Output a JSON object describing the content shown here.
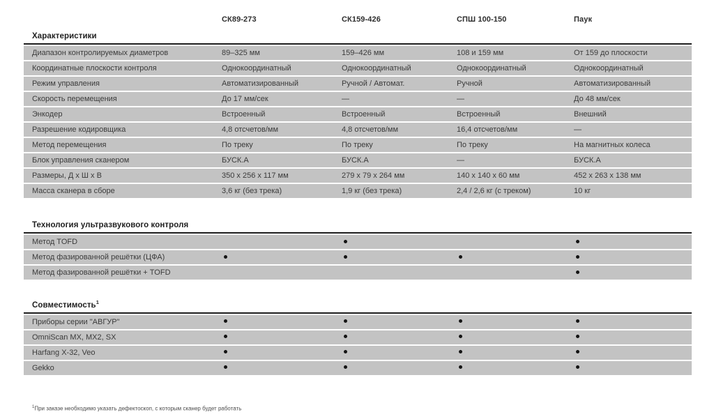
{
  "columns": [
    "СК89-273",
    "СК159-426",
    "СПШ 100-150",
    "Паук"
  ],
  "sections": [
    {
      "title": "Характеристики",
      "superscript": "",
      "rows": [
        {
          "label": "Диапазон контролируемых диаметров",
          "values": [
            "89–325 мм",
            "159–426 мм",
            "108 и 159 мм",
            "От 159 до плоскости"
          ]
        },
        {
          "label": "Координатные плоскости контроля",
          "values": [
            "Однокоординатный",
            "Однокоординатный",
            "Однокоординатный",
            "Однокоординатный"
          ]
        },
        {
          "label": "Режим управления",
          "values": [
            "Автоматизированный",
            "Ручной / Автомат.",
            "Ручной",
            "Автоматизированный"
          ]
        },
        {
          "label": "Скорость перемещения",
          "values": [
            "До 17 мм/сек",
            "—",
            "—",
            "До 48 мм/сек"
          ]
        },
        {
          "label": "Энкодер",
          "values": [
            "Встроенный",
            "Встроенный",
            "Встроенный",
            "Внешний"
          ]
        },
        {
          "label": "Разрешение кодировщика",
          "values": [
            "4,8 отсчетов/мм",
            "4,8 отсчетов/мм",
            "16,4 отсчетов/мм",
            "—"
          ]
        },
        {
          "label": "Метод перемещения",
          "values": [
            "По треку",
            "По треку",
            "По треку",
            "На магнитных колеса"
          ]
        },
        {
          "label": "Блок управления сканером",
          "values": [
            "БУСК.А",
            "БУСК.А",
            "—",
            "БУСК.А"
          ]
        },
        {
          "label": "Размеры, Д х Ш х В",
          "values": [
            "350 x 256 x 117 мм",
            "279 x 79 x 264 мм",
            "140 x 140 x 60 мм",
            "452 x 263 x 138 мм"
          ]
        },
        {
          "label": "Масса сканера в сборе",
          "values": [
            "3,6 кг (без трека)",
            "1,9 кг (без трека)",
            "2,4 / 2,6 кг (с треком)",
            "10 кг"
          ]
        }
      ]
    },
    {
      "title": "Технология ультразвукового контроля",
      "superscript": "",
      "rows": [
        {
          "label": "Метод TOFD",
          "values": [
            "",
            "•",
            "",
            "•"
          ]
        },
        {
          "label": "Метод фазированной решётки (ЦФА)",
          "values": [
            "•",
            "•",
            "•",
            "•"
          ]
        },
        {
          "label": "Метод фазированной решётки + TOFD",
          "values": [
            "",
            "",
            "",
            "•"
          ]
        }
      ]
    },
    {
      "title": "Совместимость",
      "superscript": "1",
      "rows": [
        {
          "label": "Приборы серии \"АВГУР\"",
          "values": [
            "•",
            "•",
            "•",
            "•"
          ]
        },
        {
          "label": "OmniScan MX, MX2, SX",
          "values": [
            "•",
            "•",
            "•",
            "•"
          ]
        },
        {
          "label": "Harfang X-32, Veo",
          "values": [
            "•",
            "•",
            "•",
            "•"
          ]
        },
        {
          "label": "Gekko",
          "values": [
            "•",
            "•",
            "•",
            "•"
          ]
        }
      ]
    }
  ],
  "footnote": {
    "superscript": "1",
    "text": "При заказе необходимо указать дефектоскоп, с которым сканер будет работать"
  },
  "colors": {
    "row_bg": "#c3c3c3",
    "section_border": "#1d1d1d",
    "text": "#3b3b3b",
    "heading": "#1f1f1f"
  }
}
